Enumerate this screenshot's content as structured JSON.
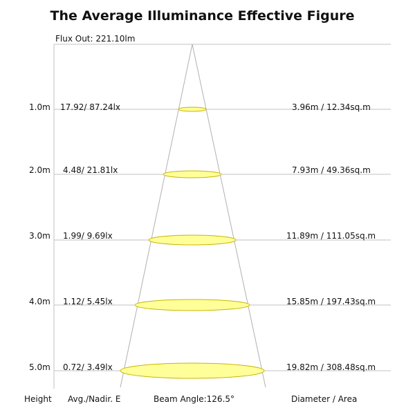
{
  "title": "The Average Illuminance Effective Figure",
  "flux_out": "Flux Out: 221.10lm",
  "rows": [
    {
      "height": "1.0m",
      "illuminance": "17.92/ 87.24lx",
      "diameter_area": "3.96m / 12.34sq.m"
    },
    {
      "height": "2.0m",
      "illuminance": "4.48/ 21.81lx",
      "diameter_area": "7.93m / 49.36sq.m"
    },
    {
      "height": "3.0m",
      "illuminance": "1.99/ 9.69lx",
      "diameter_area": "11.89m / 111.05sq.m"
    },
    {
      "height": "4.0m",
      "illuminance": "1.12/ 5.45lx",
      "diameter_area": "15.85m / 197.43sq.m"
    },
    {
      "height": "5.0m",
      "illuminance": "0.72/ 3.49lx",
      "diameter_area": "19.82m / 308.48sq.m"
    }
  ],
  "footer": {
    "height": "Height",
    "avg_nadir": "Avg./Nadir. E",
    "beam_angle": "Beam Angle:126.5°",
    "diameter_area": "Diameter / Area"
  },
  "colors": {
    "spot_fill": "#ffff99",
    "spot_stroke": "#c8b400",
    "line": "#c0c0c0"
  }
}
